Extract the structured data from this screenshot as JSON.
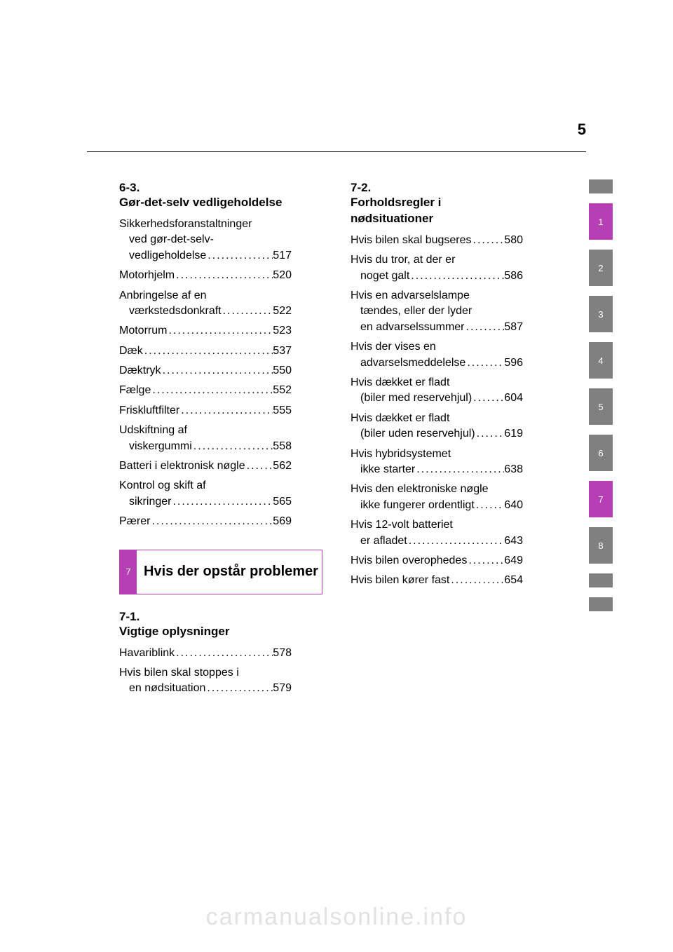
{
  "page_number": "5",
  "accent_color": "#b63fb6",
  "gray_color": "#808080",
  "watermark": "carmanualsonline.info",
  "left": {
    "sec1": {
      "num": "6-3.",
      "heading": "Gør-det-selv vedligeholdelse",
      "items": [
        {
          "lines": [
            "Sikkerhedsforanstaltninger",
            "ved gør-det-selv-",
            "vedligeholdelse"
          ],
          "page": "517"
        },
        {
          "lines": [
            "Motorhjelm"
          ],
          "page": "520"
        },
        {
          "lines": [
            "Anbringelse af en",
            "værkstedsdonkraft"
          ],
          "page": "522"
        },
        {
          "lines": [
            "Motorrum"
          ],
          "page": "523"
        },
        {
          "lines": [
            "Dæk"
          ],
          "page": "537"
        },
        {
          "lines": [
            "Dæktryk"
          ],
          "page": "550"
        },
        {
          "lines": [
            "Fælge"
          ],
          "page": "552"
        },
        {
          "lines": [
            "Friskluftfilter"
          ],
          "page": "555"
        },
        {
          "lines": [
            "Udskiftning af",
            "viskergummi"
          ],
          "page": "558"
        },
        {
          "lines": [
            "Batteri i elektronisk nøgle"
          ],
          "page": "562"
        },
        {
          "lines": [
            "Kontrol og skift af",
            "sikringer"
          ],
          "page": "565"
        },
        {
          "lines": [
            "Pærer"
          ],
          "page": "569"
        }
      ]
    },
    "chapter": {
      "num": "7",
      "title": "Hvis der opstår problemer"
    },
    "sec2": {
      "num": "7-1.",
      "heading": "Vigtige oplysninger",
      "items": [
        {
          "lines": [
            "Havariblink"
          ],
          "page": "578"
        },
        {
          "lines": [
            "Hvis bilen skal stoppes i",
            "en nødsituation"
          ],
          "page": "579"
        }
      ]
    }
  },
  "right": {
    "sec": {
      "num": "7-2.",
      "heading": "Forholdsregler i nødsituationer",
      "items": [
        {
          "lines": [
            "Hvis bilen skal bugseres"
          ],
          "page": "580"
        },
        {
          "lines": [
            "Hvis du tror, at der er",
            "noget galt"
          ],
          "page": "586"
        },
        {
          "lines": [
            "Hvis en advarselslampe",
            "tændes, eller der lyder",
            "en advarselssummer"
          ],
          "page": "587"
        },
        {
          "lines": [
            "Hvis der vises en",
            "advarselsmeddelelse"
          ],
          "page": "596"
        },
        {
          "lines": [
            "Hvis dækket er fladt",
            "(biler med reservehjul)"
          ],
          "page": "604"
        },
        {
          "lines": [
            "Hvis dækket er fladt",
            "(biler uden reservehjul)"
          ],
          "page": "619"
        },
        {
          "lines": [
            "Hvis hybridsystemet",
            "ikke starter"
          ],
          "page": "638"
        },
        {
          "lines": [
            "Hvis den elektroniske nøgle",
            "ikke fungerer ordentligt"
          ],
          "page": "640"
        },
        {
          "lines": [
            "Hvis 12-volt batteriet",
            "er afladet"
          ],
          "page": "643"
        },
        {
          "lines": [
            "Hvis bilen overophedes"
          ],
          "page": "649"
        },
        {
          "lines": [
            "Hvis bilen kører fast"
          ],
          "page": "654"
        }
      ]
    }
  },
  "tabs": [
    {
      "label": "",
      "type": "blank"
    },
    {
      "label": "1",
      "type": "accent"
    },
    {
      "label": "2",
      "type": "gray"
    },
    {
      "label": "3",
      "type": "gray"
    },
    {
      "label": "4",
      "type": "gray"
    },
    {
      "label": "5",
      "type": "gray"
    },
    {
      "label": "6",
      "type": "gray"
    },
    {
      "label": "7",
      "type": "accent"
    },
    {
      "label": "8",
      "type": "gray"
    },
    {
      "label": "",
      "type": "blank"
    },
    {
      "label": "",
      "type": "blank"
    }
  ]
}
